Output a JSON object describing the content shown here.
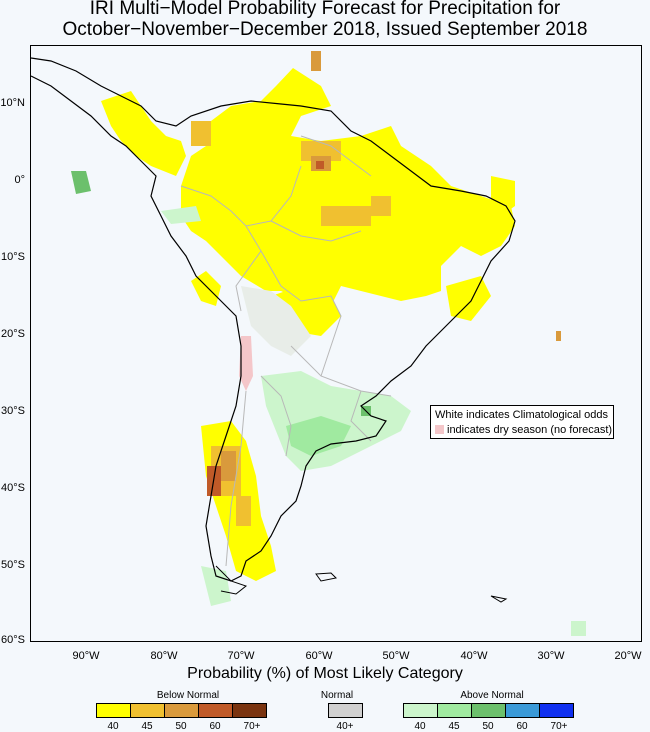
{
  "title_line1": "IRI Multi−Model Probability Forecast for Precipitation for",
  "title_line2": "October−November−December 2018, Issued September 2018",
  "axes": {
    "lat_labels": [
      "10°N",
      "0°",
      "10°S",
      "20°S",
      "30°S",
      "40°S",
      "50°S",
      "60°S"
    ],
    "lon_labels": [
      "90°W",
      "80°W",
      "70°W",
      "60°W",
      "50°W",
      "40°W",
      "30°W",
      "20°W"
    ]
  },
  "legend_box": {
    "line1": "White indicates Climatological odds",
    "line2": "indicates dry season (no forecast)"
  },
  "probability_title": "Probability (%) of Most Likely Category",
  "categories": {
    "below": {
      "label": "Below Normal",
      "ticks": [
        "40",
        "45",
        "50",
        "60",
        "70+"
      ],
      "colors": [
        "#ffff00",
        "#f0c030",
        "#d99a3c",
        "#c05a28",
        "#7a3410"
      ]
    },
    "normal": {
      "label": "Normal",
      "ticks": [
        "40+"
      ],
      "colors": [
        "#d0d0d0"
      ]
    },
    "above": {
      "label": "Above Normal",
      "ticks": [
        "40",
        "45",
        "50",
        "60",
        "70+"
      ],
      "colors": [
        "#ccf5cc",
        "#a0eaa0",
        "#6cc06c",
        "#3a9ad8",
        "#1030f0"
      ]
    }
  },
  "map_colors": {
    "coast": "#000000",
    "borders": "#b8b8b8",
    "rivers": "#b8b8b8",
    "dry_season": "#f4c6c9"
  }
}
